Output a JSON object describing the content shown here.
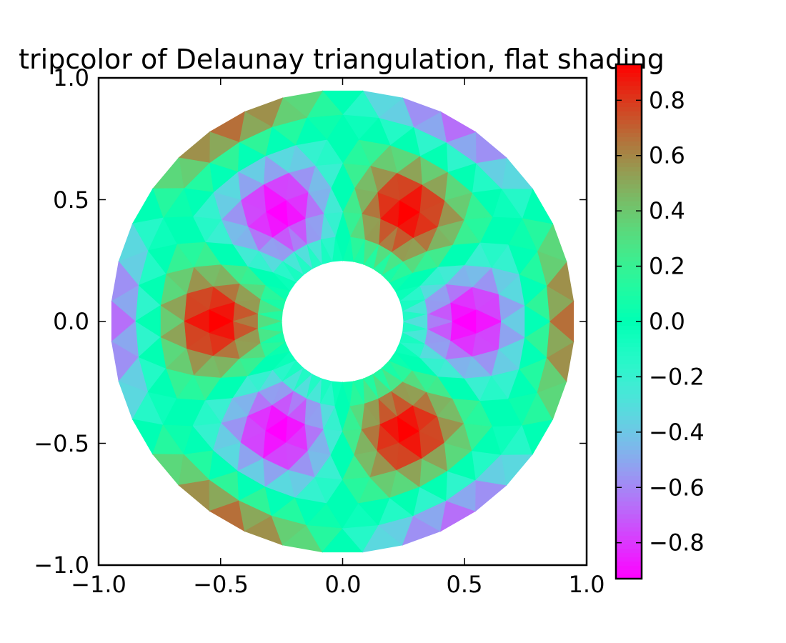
{
  "chart_data": {
    "type": "heatmap",
    "title": "tripcolor of Delaunay triangulation, flat shading",
    "xlabel": "",
    "ylabel": "",
    "xlim": [
      -1.0,
      1.0
    ],
    "ylim": [
      -1.0,
      1.0
    ],
    "x_ticks": [
      "−1.0",
      "−0.5",
      "0.0",
      "0.5",
      "1.0"
    ],
    "y_ticks": [
      "1.0",
      "0.5",
      "0.0",
      "−0.5",
      "−1.0"
    ],
    "grid": false,
    "colormap": "rainbow",
    "shading": "flat",
    "mesh": {
      "n_radii": 8,
      "n_angles": 36,
      "min_radius": 0.25,
      "max_radius": 0.95,
      "formula": "cos(r*6) * cos(3*theta)"
    },
    "colorbar": {
      "min": -0.93,
      "max": 0.93,
      "ticks": [
        0.8,
        0.6,
        0.4,
        0.2,
        0.0,
        -0.2,
        -0.4,
        -0.6,
        -0.8
      ],
      "tick_labels": [
        "0.8",
        "0.6",
        "0.4",
        "0.2",
        "0.0",
        "−0.2",
        "−0.4",
        "−0.6",
        "−0.8"
      ]
    }
  }
}
